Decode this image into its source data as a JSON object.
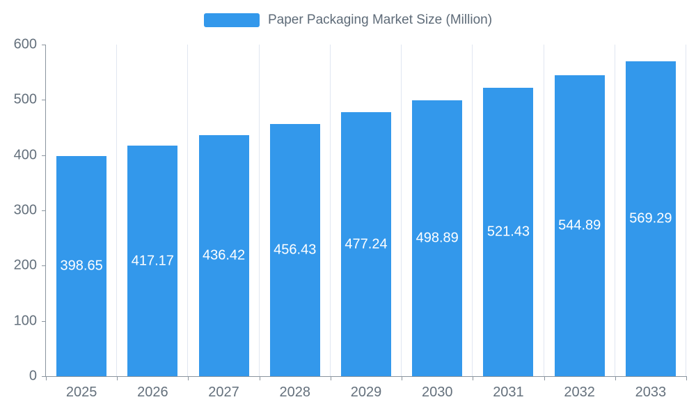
{
  "legend": {
    "label": "Paper Packaging Market Size (Million)",
    "swatch_color": "#3398eb"
  },
  "chart_data": {
    "type": "bar",
    "title": "Paper Packaging Market Size (Million)",
    "categories": [
      "2025",
      "2026",
      "2027",
      "2028",
      "2029",
      "2030",
      "2031",
      "2032",
      "2033"
    ],
    "values": [
      398.65,
      417.17,
      436.42,
      456.43,
      477.24,
      498.89,
      521.43,
      544.89,
      569.29
    ],
    "value_labels": [
      "398.65",
      "417.17",
      "436.42",
      "456.43",
      "477.24",
      "498.89",
      "521.43",
      "544.89",
      "569.29"
    ],
    "xlabel": "",
    "ylabel": "",
    "ylim": [
      0,
      600
    ],
    "yticks": [
      0,
      100,
      200,
      300,
      400,
      500,
      600
    ],
    "bar_color": "#3398eb",
    "value_label_color": "#ffffff",
    "axis_text_color": "#64707c",
    "grid_color": "#e0e6f1",
    "grid": "vertical-splitlines",
    "legend_position": "top-center",
    "label_position": "inside-middle"
  }
}
